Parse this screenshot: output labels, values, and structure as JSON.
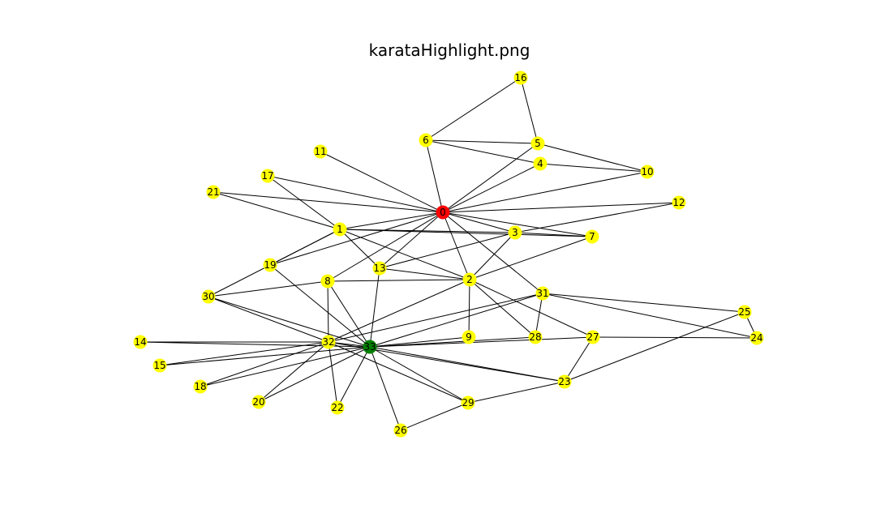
{
  "title": "karataHighlight.png",
  "colors": {
    "default_node": "#ffff00",
    "source_node": "#ff0000",
    "target_node": "#008000",
    "edge": "#000000",
    "background": "#ffffff"
  },
  "nodes": [
    {
      "id": 0,
      "label": "0",
      "highlight": "source"
    },
    {
      "id": 1,
      "label": "1"
    },
    {
      "id": 2,
      "label": "2"
    },
    {
      "id": 3,
      "label": "3"
    },
    {
      "id": 4,
      "label": "4"
    },
    {
      "id": 5,
      "label": "5"
    },
    {
      "id": 6,
      "label": "6"
    },
    {
      "id": 7,
      "label": "7"
    },
    {
      "id": 8,
      "label": "8"
    },
    {
      "id": 9,
      "label": "9"
    },
    {
      "id": 10,
      "label": "10"
    },
    {
      "id": 11,
      "label": "11"
    },
    {
      "id": 12,
      "label": "12"
    },
    {
      "id": 13,
      "label": "13"
    },
    {
      "id": 14,
      "label": "14"
    },
    {
      "id": 15,
      "label": "15"
    },
    {
      "id": 16,
      "label": "16"
    },
    {
      "id": 17,
      "label": "17"
    },
    {
      "id": 18,
      "label": "18"
    },
    {
      "id": 19,
      "label": "19"
    },
    {
      "id": 20,
      "label": "20"
    },
    {
      "id": 21,
      "label": "21"
    },
    {
      "id": 22,
      "label": "22"
    },
    {
      "id": 23,
      "label": "23"
    },
    {
      "id": 24,
      "label": "24"
    },
    {
      "id": 25,
      "label": "25"
    },
    {
      "id": 26,
      "label": "26"
    },
    {
      "id": 27,
      "label": "27"
    },
    {
      "id": 28,
      "label": "28"
    },
    {
      "id": 29,
      "label": "29"
    },
    {
      "id": 30,
      "label": "30"
    },
    {
      "id": 31,
      "label": "31"
    },
    {
      "id": 32,
      "label": "32"
    },
    {
      "id": 33,
      "label": "33",
      "highlight": "target"
    }
  ],
  "edges": [
    [
      0,
      1
    ],
    [
      0,
      2
    ],
    [
      0,
      3
    ],
    [
      0,
      4
    ],
    [
      0,
      5
    ],
    [
      0,
      6
    ],
    [
      0,
      7
    ],
    [
      0,
      8
    ],
    [
      0,
      10
    ],
    [
      0,
      11
    ],
    [
      0,
      12
    ],
    [
      0,
      13
    ],
    [
      0,
      17
    ],
    [
      0,
      19
    ],
    [
      0,
      21
    ],
    [
      0,
      31
    ],
    [
      1,
      2
    ],
    [
      1,
      3
    ],
    [
      1,
      7
    ],
    [
      1,
      13
    ],
    [
      1,
      17
    ],
    [
      1,
      19
    ],
    [
      1,
      21
    ],
    [
      1,
      30
    ],
    [
      2,
      3
    ],
    [
      2,
      7
    ],
    [
      2,
      8
    ],
    [
      2,
      9
    ],
    [
      2,
      13
    ],
    [
      2,
      27
    ],
    [
      2,
      28
    ],
    [
      2,
      32
    ],
    [
      3,
      7
    ],
    [
      3,
      12
    ],
    [
      3,
      13
    ],
    [
      4,
      6
    ],
    [
      4,
      10
    ],
    [
      5,
      6
    ],
    [
      5,
      10
    ],
    [
      5,
      16
    ],
    [
      6,
      16
    ],
    [
      8,
      30
    ],
    [
      8,
      32
    ],
    [
      8,
      33
    ],
    [
      9,
      33
    ],
    [
      13,
      33
    ],
    [
      14,
      32
    ],
    [
      14,
      33
    ],
    [
      15,
      32
    ],
    [
      15,
      33
    ],
    [
      18,
      32
    ],
    [
      18,
      33
    ],
    [
      19,
      33
    ],
    [
      20,
      32
    ],
    [
      20,
      33
    ],
    [
      22,
      32
    ],
    [
      22,
      33
    ],
    [
      23,
      25
    ],
    [
      23,
      27
    ],
    [
      23,
      29
    ],
    [
      23,
      32
    ],
    [
      23,
      33
    ],
    [
      24,
      25
    ],
    [
      24,
      27
    ],
    [
      24,
      31
    ],
    [
      25,
      31
    ],
    [
      26,
      29
    ],
    [
      26,
      33
    ],
    [
      27,
      33
    ],
    [
      28,
      31
    ],
    [
      28,
      33
    ],
    [
      29,
      32
    ],
    [
      29,
      33
    ],
    [
      30,
      32
    ],
    [
      30,
      33
    ],
    [
      31,
      32
    ],
    [
      31,
      33
    ],
    [
      32,
      33
    ]
  ]
}
